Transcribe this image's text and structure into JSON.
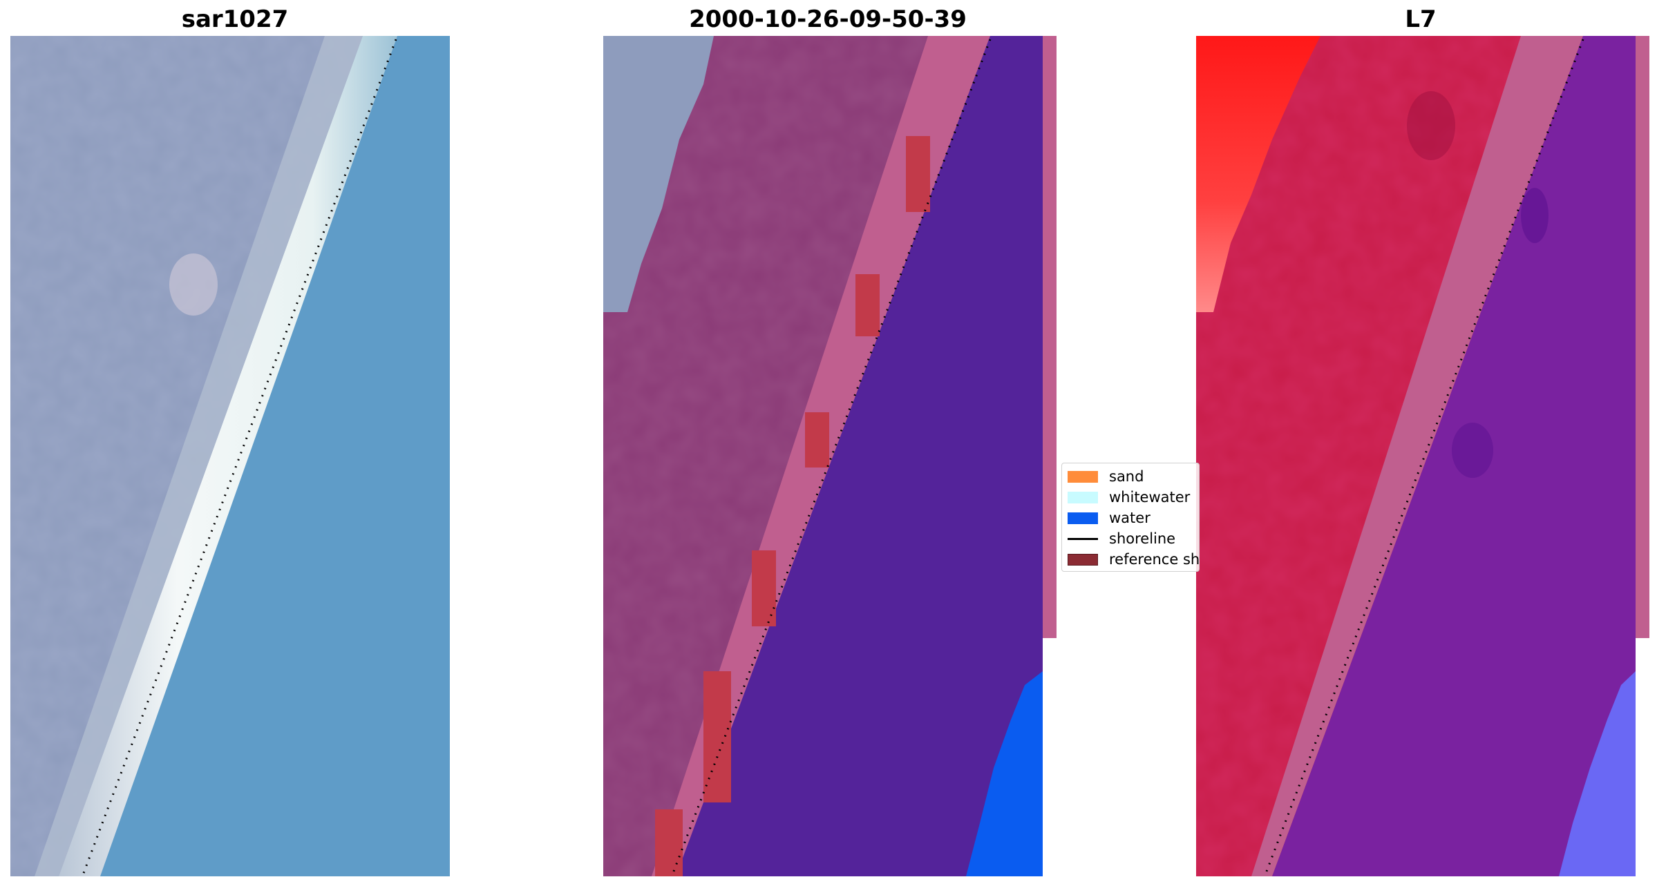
{
  "panels": [
    {
      "title": "sar1027"
    },
    {
      "title": "2000-10-26-09-50-39"
    },
    {
      "title": "L7"
    }
  ],
  "legend": {
    "items": [
      {
        "label": "sand",
        "kind": "patch",
        "color": "#ff8c3a"
      },
      {
        "label": "whitewater",
        "kind": "patch",
        "color": "#c8fbff"
      },
      {
        "label": "water",
        "kind": "patch",
        "color": "#0a5cf0"
      },
      {
        "label": "shoreline",
        "kind": "line",
        "color": "#000000"
      },
      {
        "label": "reference shoreline",
        "kind": "patch",
        "color": "#8b2b33"
      }
    ]
  },
  "colors": {
    "land_rgb": "#8a96b8",
    "beach": "#eef4f4",
    "sea_rgb": "#5e9ac4",
    "class_land": "#8a3a76",
    "class_beach_edge": "#c05f8f",
    "class_sea": "#54239a",
    "class_water": "#0a5cf0",
    "class_reference": "#c23a4a",
    "l7_land": "#c81c48",
    "l7_bright": "#ff2020",
    "l7_sea": "#7a22a0",
    "l7_water": "#6a68f4",
    "shoreline_dots": "#000000"
  }
}
